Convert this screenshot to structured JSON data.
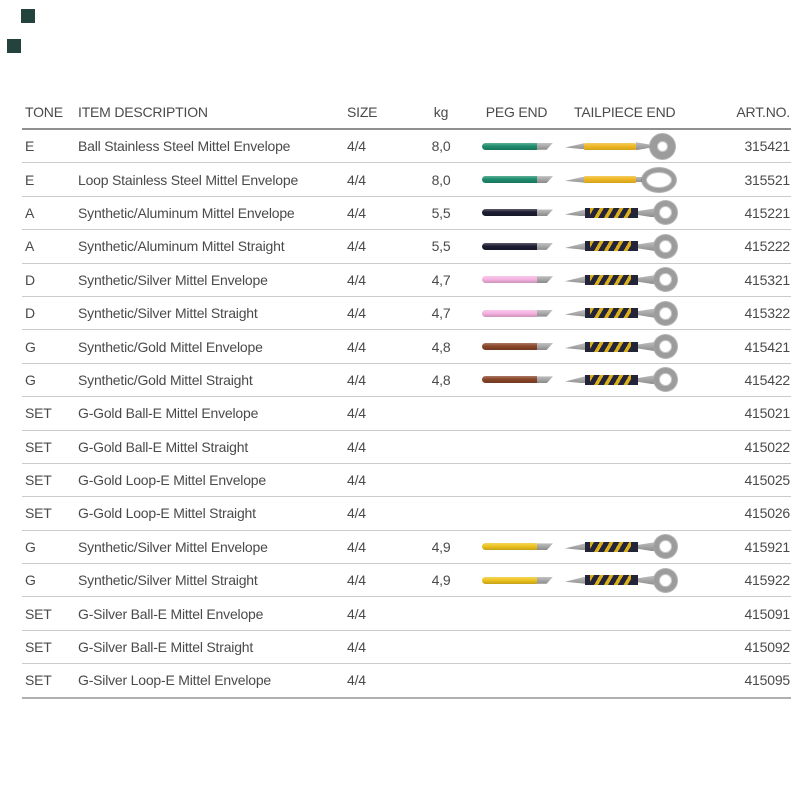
{
  "decor": {
    "square_color": "#24433d"
  },
  "colors": {
    "text": "#4a4a4a",
    "header_rule": "#8f8f8f",
    "row_rule": "#cbcbcb",
    "bottom_rule": "#b0b0b0",
    "metal_gray": "#9c9c9c",
    "stripe_dark": "#23243a",
    "stripe_yellow": "#d9af1e",
    "string_yellow": "#f0b722",
    "teal_string": "#1f8e6e",
    "navy_string": "#1d1d33",
    "pink_string": "#f6b3e2",
    "brown_string": "#8a4629",
    "gold_string": "#eec41f"
  },
  "table": {
    "headers": {
      "tone": "TONE",
      "description": "ITEM DESCRIPTION",
      "size": "SIZE",
      "kg": "kg",
      "peg_end": "PEG END",
      "tailpiece_end": "TAILPIECE END",
      "art_no": "ART.NO."
    },
    "rows": [
      {
        "tone": "E",
        "description": "Ball Stainless Steel Mittel Envelope",
        "size": "4/4",
        "kg": "8,0",
        "peg_color": "#1f8e6e",
        "tailpiece": "ball",
        "art_no": "315421"
      },
      {
        "tone": "E",
        "description": "Loop Stainless Steel Mittel Envelope",
        "size": "4/4",
        "kg": "8,0",
        "peg_color": "#1f8e6e",
        "tailpiece": "loop",
        "art_no": "315521"
      },
      {
        "tone": "A",
        "description": "Synthetic/Aluminum Mittel Envelope",
        "size": "4/4",
        "kg": "5,5",
        "peg_color": "#1d1d33",
        "tailpiece": "striped",
        "art_no": "415221"
      },
      {
        "tone": "A",
        "description": "Synthetic/Aluminum Mittel Straight",
        "size": "4/4",
        "kg": "5,5",
        "peg_color": "#1d1d33",
        "tailpiece": "striped",
        "art_no": "415222"
      },
      {
        "tone": "D",
        "description": "Synthetic/Silver Mittel Envelope",
        "size": "4/4",
        "kg": "4,7",
        "peg_color": "#f6b3e2",
        "tailpiece": "striped",
        "art_no": "415321"
      },
      {
        "tone": "D",
        "description": "Synthetic/Silver Mittel Straight",
        "size": "4/4",
        "kg": "4,7",
        "peg_color": "#f6b3e2",
        "tailpiece": "striped",
        "art_no": "415322"
      },
      {
        "tone": "G",
        "description": "Synthetic/Gold Mittel Envelope",
        "size": "4/4",
        "kg": "4,8",
        "peg_color": "#8a4629",
        "tailpiece": "striped",
        "art_no": "415421"
      },
      {
        "tone": "G",
        "description": "Synthetic/Gold Mittel Straight",
        "size": "4/4",
        "kg": "4,8",
        "peg_color": "#8a4629",
        "tailpiece": "striped",
        "art_no": "415422"
      },
      {
        "tone": "SET",
        "description": "G-Gold Ball-E Mittel Envelope",
        "size": "4/4",
        "kg": "",
        "peg_color": null,
        "tailpiece": null,
        "art_no": "415021"
      },
      {
        "tone": "SET",
        "description": "G-Gold Ball-E Mittel Straight",
        "size": "4/4",
        "kg": "",
        "peg_color": null,
        "tailpiece": null,
        "art_no": "415022"
      },
      {
        "tone": "SET",
        "description": "G-Gold Loop-E Mittel Envelope",
        "size": "4/4",
        "kg": "",
        "peg_color": null,
        "tailpiece": null,
        "art_no": "415025"
      },
      {
        "tone": "SET",
        "description": "G-Gold Loop-E Mittel Straight",
        "size": "4/4",
        "kg": "",
        "peg_color": null,
        "tailpiece": null,
        "art_no": "415026"
      },
      {
        "tone": "G",
        "description": "Synthetic/Silver Mittel Envelope",
        "size": "4/4",
        "kg": "4,9",
        "peg_color": "#eec41f",
        "tailpiece": "striped",
        "art_no": "415921"
      },
      {
        "tone": "G",
        "description": "Synthetic/Silver Mittel Straight",
        "size": "4/4",
        "kg": "4,9",
        "peg_color": "#eec41f",
        "tailpiece": "striped",
        "art_no": "415922"
      },
      {
        "tone": "SET",
        "description": "G-Silver Ball-E Mittel Envelope",
        "size": "4/4",
        "kg": "",
        "peg_color": null,
        "tailpiece": null,
        "art_no": "415091"
      },
      {
        "tone": "SET",
        "description": "G-Silver Ball-E Mittel Straight",
        "size": "4/4",
        "kg": "",
        "peg_color": null,
        "tailpiece": null,
        "art_no": "415092"
      },
      {
        "tone": "SET",
        "description": "G-Silver Loop-E Mittel Envelope",
        "size": "4/4",
        "kg": "",
        "peg_color": null,
        "tailpiece": null,
        "art_no": "415095"
      }
    ]
  }
}
